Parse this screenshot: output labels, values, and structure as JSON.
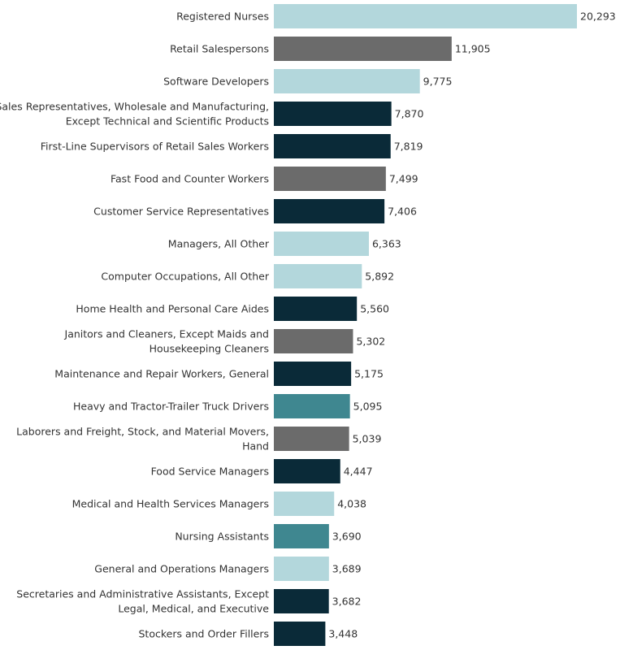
{
  "chart_data": {
    "type": "bar",
    "orientation": "horizontal",
    "categories": [
      "Registered Nurses",
      "Retail Salespersons",
      "Software Developers",
      "Sales Representatives, Wholesale and Manufacturing, Except Technical and Scientific Products",
      "First-Line Supervisors of Retail Sales Workers",
      "Fast Food and Counter Workers",
      "Customer Service Representatives",
      "Managers, All Other",
      "Computer Occupations, All Other",
      "Home Health and Personal Care Aides",
      "Janitors and Cleaners, Except Maids and Housekeeping Cleaners",
      "Maintenance and Repair Workers, General",
      "Heavy and Tractor-Trailer Truck Drivers",
      "Laborers and Freight, Stock, and Material Movers, Hand",
      "Food Service Managers",
      "Medical and Health Services Managers",
      "Nursing Assistants",
      "General and Operations Managers",
      "Secretaries and Administrative Assistants, Except Legal, Medical, and Executive",
      "Stockers and Order Fillers"
    ],
    "label_lines": [
      [
        "Registered Nurses"
      ],
      [
        "Retail Salespersons"
      ],
      [
        "Software Developers"
      ],
      [
        "Sales Representatives, Wholesale and Manufacturing,",
        "Except Technical and Scientific Products"
      ],
      [
        "First-Line Supervisors of Retail Sales Workers"
      ],
      [
        "Fast Food and Counter Workers"
      ],
      [
        "Customer Service Representatives"
      ],
      [
        "Managers, All Other"
      ],
      [
        "Computer Occupations, All Other"
      ],
      [
        "Home Health and Personal Care Aides"
      ],
      [
        "Janitors and Cleaners, Except Maids and",
        "Housekeeping Cleaners"
      ],
      [
        "Maintenance and Repair Workers, General"
      ],
      [
        "Heavy and Tractor-Trailer Truck Drivers"
      ],
      [
        "Laborers and Freight, Stock, and Material Movers,",
        "Hand"
      ],
      [
        "Food Service Managers"
      ],
      [
        "Medical and Health Services Managers"
      ],
      [
        "Nursing Assistants"
      ],
      [
        "General and Operations Managers"
      ],
      [
        "Secretaries and Administrative Assistants, Except",
        "Legal, Medical, and Executive"
      ],
      [
        "Stockers and Order Fillers"
      ]
    ],
    "values": [
      20293,
      11905,
      9775,
      7870,
      7819,
      7499,
      7406,
      6363,
      5892,
      5560,
      5302,
      5175,
      5095,
      5039,
      4447,
      4038,
      3690,
      3689,
      3682,
      3448
    ],
    "value_labels": [
      "20,293",
      "11,905",
      "9,775",
      "7,870",
      "7,819",
      "7,499",
      "7,406",
      "6,363",
      "5,892",
      "5,560",
      "5,302",
      "5,175",
      "5,095",
      "5,039",
      "4,447",
      "4,038",
      "3,690",
      "3,689",
      "3,682",
      "3,448"
    ],
    "color_groups": [
      "light",
      "gray",
      "light",
      "dark",
      "dark",
      "gray",
      "dark",
      "light",
      "light",
      "dark",
      "gray",
      "dark",
      "teal",
      "gray",
      "dark",
      "light",
      "teal",
      "light",
      "dark",
      "dark"
    ],
    "colors": {
      "light": "#b3d7dc",
      "gray": "#6b6b6b",
      "dark": "#0a2a38",
      "teal": "#3f8790"
    },
    "xlim": [
      0,
      20293
    ],
    "title": "",
    "xlabel": "",
    "ylabel": "",
    "grid": false,
    "legend": "none"
  }
}
